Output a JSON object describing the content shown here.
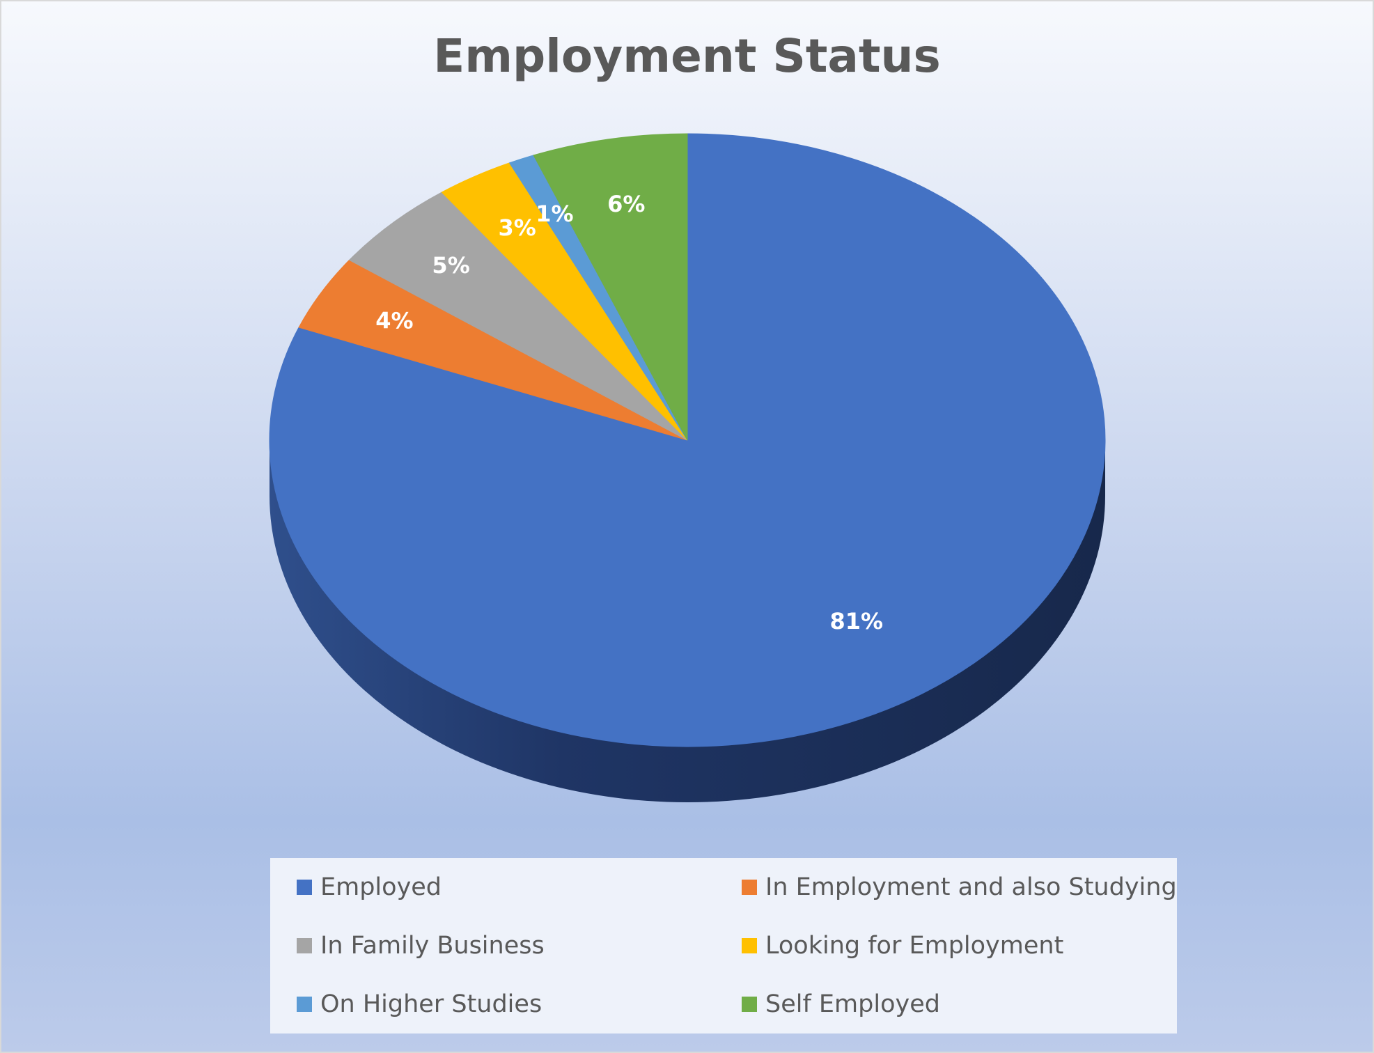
{
  "chart_data": {
    "type": "pie",
    "title": "Employment Status",
    "categories": [
      "Employed",
      "In Employment and also Studying",
      "In Family Business",
      "Looking for Employment",
      "On Higher Studies",
      "Self Employed"
    ],
    "values": [
      81,
      4,
      5,
      3,
      1,
      6
    ],
    "labels": [
      "81%",
      "4%",
      "5%",
      "3%",
      "1%",
      "6%"
    ],
    "colors": [
      "#4472C4",
      "#ED7D31",
      "#A5A5A5",
      "#FFC000",
      "#5B9BD5",
      "#70AD47"
    ],
    "legend_position": "bottom",
    "style": "3d"
  }
}
